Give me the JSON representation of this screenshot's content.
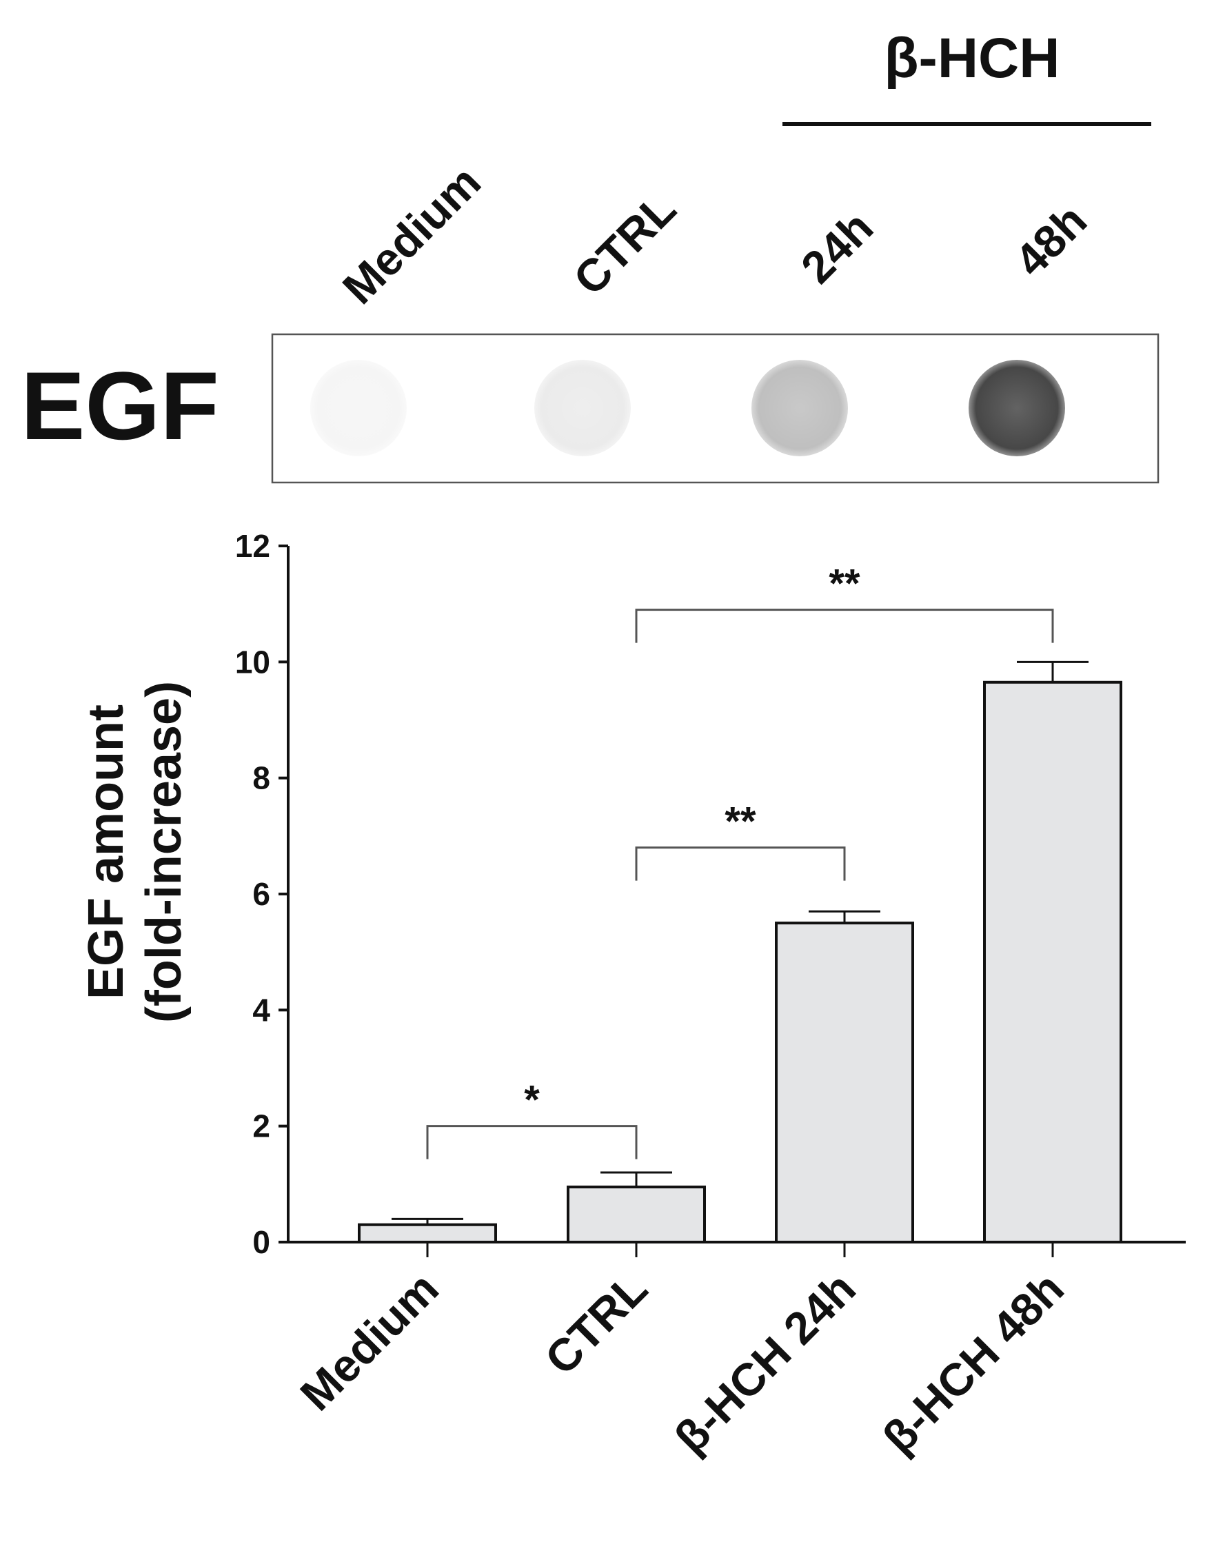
{
  "figure": {
    "group_label": "β-HCH",
    "blot_lane_labels": [
      "Medium",
      "CTRL",
      "24h",
      "48h"
    ],
    "blot_row_label": "EGF",
    "colors": {
      "bar_fill": "#e4e5e7",
      "ink": "#111111",
      "bracket": "#555555"
    }
  },
  "chart_data": {
    "type": "bar",
    "categories": [
      "Medium",
      "CTRL",
      "β-HCH 24h",
      "β-HCH 48h"
    ],
    "values": [
      0.3,
      0.95,
      5.5,
      9.65
    ],
    "errors": [
      0.1,
      0.25,
      0.2,
      0.35
    ],
    "ylabel": [
      "EGF amount",
      "(fold-increase)"
    ],
    "ylim": [
      0,
      12
    ],
    "yticks": [
      "0",
      "2",
      "4",
      "6",
      "8",
      "10",
      "12"
    ],
    "grid": false,
    "significance": [
      {
        "from": 0,
        "to": 1,
        "label": "*",
        "y": 2.0
      },
      {
        "from": 1,
        "to": 2,
        "label": "**",
        "y": 6.8
      },
      {
        "from": 1,
        "to": 3,
        "label": "**",
        "y": 10.9
      }
    ],
    "blot_intensity": [
      0.04,
      0.08,
      0.25,
      0.72
    ]
  }
}
